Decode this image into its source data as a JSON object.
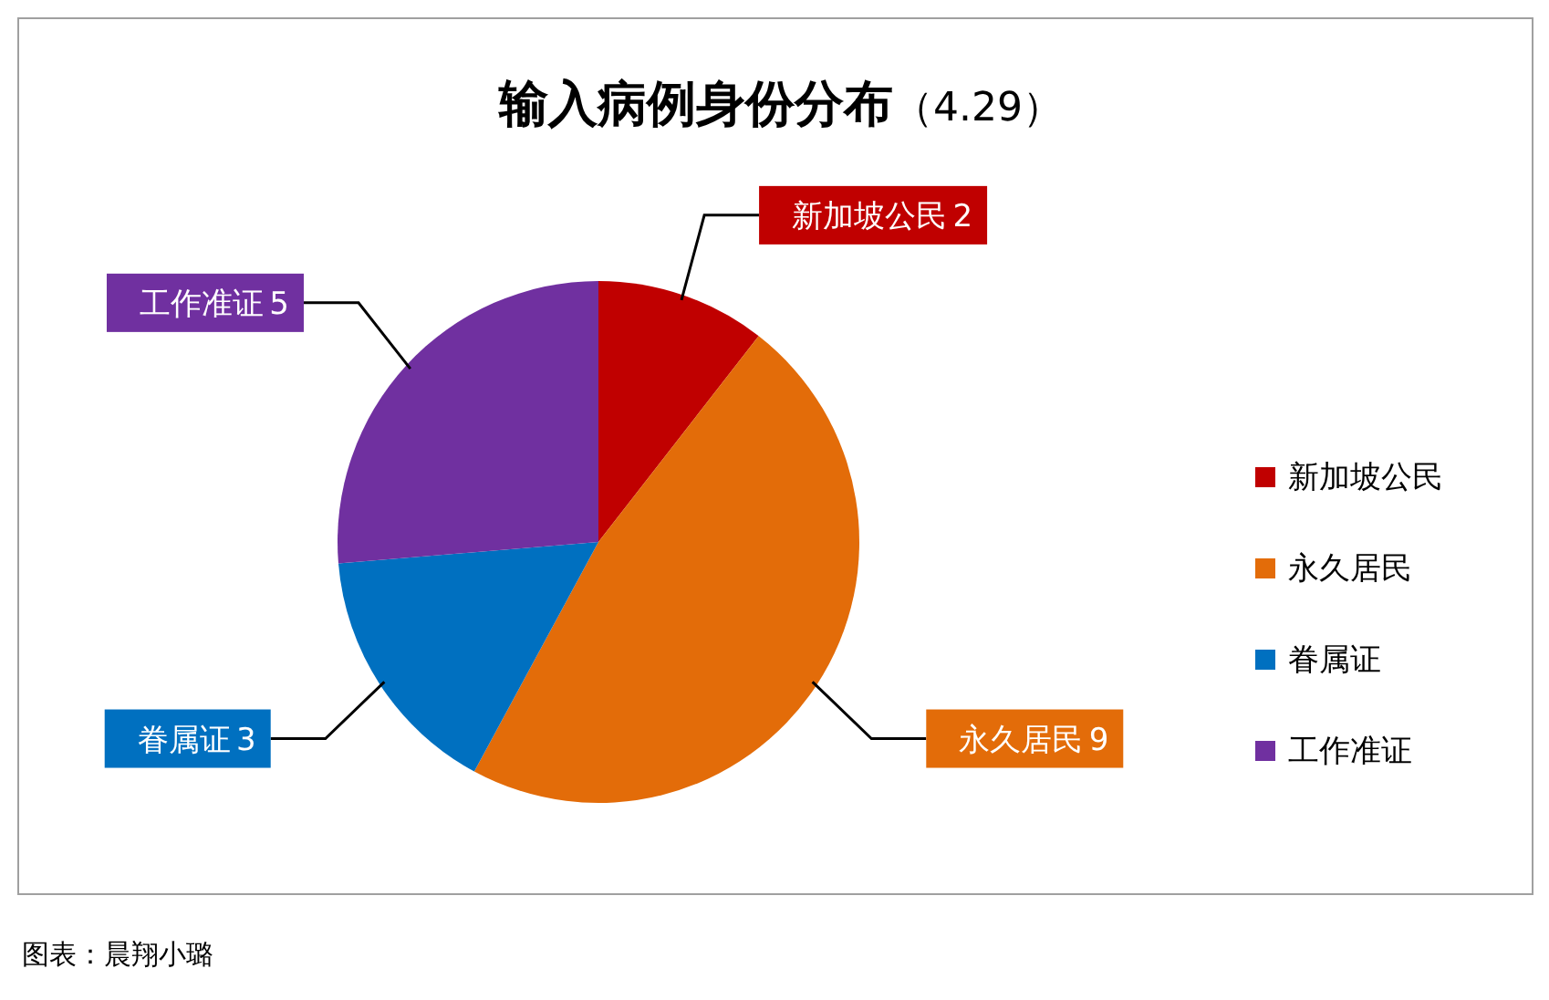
{
  "chart_data": {
    "type": "pie",
    "title": "输入病例身份分布",
    "subtitle": "（4.29）",
    "categories": [
      "新加坡公民",
      "永久居民",
      "眷属证",
      "工作准证"
    ],
    "values": [
      2,
      9,
      3,
      5
    ],
    "colors": [
      "#c00000",
      "#e36c09",
      "#0070c0",
      "#7030a0"
    ],
    "data_labels": true,
    "legend": "right",
    "annotations": [
      "图表：晨翔小璐"
    ]
  }
}
